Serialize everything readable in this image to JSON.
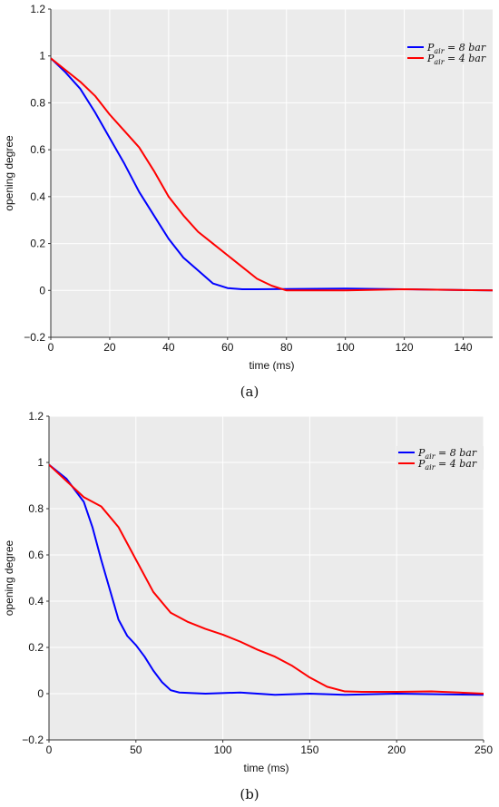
{
  "chart_data": [
    {
      "type": "line",
      "caption": "(a)",
      "xlabel": "time (ms)",
      "ylabel": "opening degree",
      "xlim": [
        0,
        150
      ],
      "ylim": [
        -0.2,
        1.2
      ],
      "xticks": [
        0,
        20,
        40,
        60,
        80,
        100,
        120,
        140
      ],
      "yticks": [
        -0.2,
        0,
        0.2,
        0.4,
        0.6,
        0.8,
        1,
        1.2
      ],
      "xtick_labels": [
        "0",
        "20",
        "40",
        "60",
        "80",
        "100",
        "120",
        "140"
      ],
      "ytick_labels": [
        "−0.2",
        "0",
        "0.2",
        "0.4",
        "0.6",
        "0.8",
        "1",
        "1.2"
      ],
      "grid": true,
      "legend": "top-right",
      "series": [
        {
          "name": "P_air = 8 bar",
          "name_main": "P",
          "name_sub": "air",
          "name_rest": " = 8 bar",
          "color": "#0000ff",
          "x": [
            0,
            5,
            10,
            15,
            20,
            25,
            30,
            35,
            40,
            45,
            50,
            55,
            60,
            65,
            70,
            80,
            100,
            120,
            150
          ],
          "y": [
            0.99,
            0.93,
            0.86,
            0.76,
            0.65,
            0.54,
            0.42,
            0.32,
            0.22,
            0.14,
            0.085,
            0.03,
            0.01,
            0.005,
            0.005,
            0.006,
            0.008,
            0.005,
            0.0
          ]
        },
        {
          "name": "P_air = 4 bar",
          "name_main": "P",
          "name_sub": "air",
          "name_rest": " = 4 bar",
          "color": "#ff0000",
          "x": [
            0,
            5,
            10,
            15,
            20,
            25,
            30,
            35,
            40,
            45,
            50,
            55,
            60,
            65,
            70,
            75,
            80,
            90,
            100,
            120,
            150
          ],
          "y": [
            0.99,
            0.94,
            0.89,
            0.83,
            0.75,
            0.68,
            0.61,
            0.51,
            0.4,
            0.32,
            0.25,
            0.2,
            0.15,
            0.1,
            0.05,
            0.02,
            0.0,
            0.0,
            0.0,
            0.005,
            0.0
          ]
        }
      ]
    },
    {
      "type": "line",
      "caption": "(b)",
      "xlabel": "time (ms)",
      "ylabel": "opening degree",
      "xlim": [
        0,
        250
      ],
      "ylim": [
        -0.2,
        1.2
      ],
      "xticks": [
        0,
        50,
        100,
        150,
        200,
        250
      ],
      "yticks": [
        -0.2,
        0,
        0.2,
        0.4,
        0.6,
        0.8,
        1,
        1.2
      ],
      "xtick_labels": [
        "0",
        "50",
        "100",
        "150",
        "200",
        "250"
      ],
      "ytick_labels": [
        "−0.2",
        "0",
        "0.2",
        "0.4",
        "0.6",
        "0.8",
        "1",
        "1.2"
      ],
      "grid": true,
      "legend": "top-right",
      "series": [
        {
          "name": "P_air = 8 bar",
          "name_main": "P",
          "name_sub": "air",
          "name_rest": " = 8 bar",
          "color": "#0000ff",
          "x": [
            0,
            10,
            20,
            25,
            30,
            35,
            40,
            45,
            50,
            55,
            60,
            65,
            70,
            75,
            90,
            110,
            130,
            150,
            170,
            200,
            250
          ],
          "y": [
            0.99,
            0.93,
            0.83,
            0.72,
            0.58,
            0.45,
            0.32,
            0.25,
            0.21,
            0.16,
            0.1,
            0.05,
            0.015,
            0.005,
            0.0,
            0.005,
            -0.005,
            0.0,
            -0.005,
            0.0,
            -0.005
          ]
        },
        {
          "name": "P_air = 4 bar",
          "name_main": "P",
          "name_sub": "air",
          "name_rest": " = 4 bar",
          "color": "#ff0000",
          "x": [
            0,
            10,
            20,
            30,
            40,
            50,
            60,
            70,
            80,
            90,
            100,
            110,
            120,
            130,
            140,
            150,
            160,
            170,
            180,
            200,
            220,
            250
          ],
          "y": [
            0.99,
            0.92,
            0.85,
            0.81,
            0.72,
            0.58,
            0.44,
            0.35,
            0.31,
            0.28,
            0.255,
            0.225,
            0.19,
            0.16,
            0.12,
            0.07,
            0.03,
            0.01,
            0.008,
            0.008,
            0.01,
            0.0
          ]
        }
      ]
    }
  ]
}
